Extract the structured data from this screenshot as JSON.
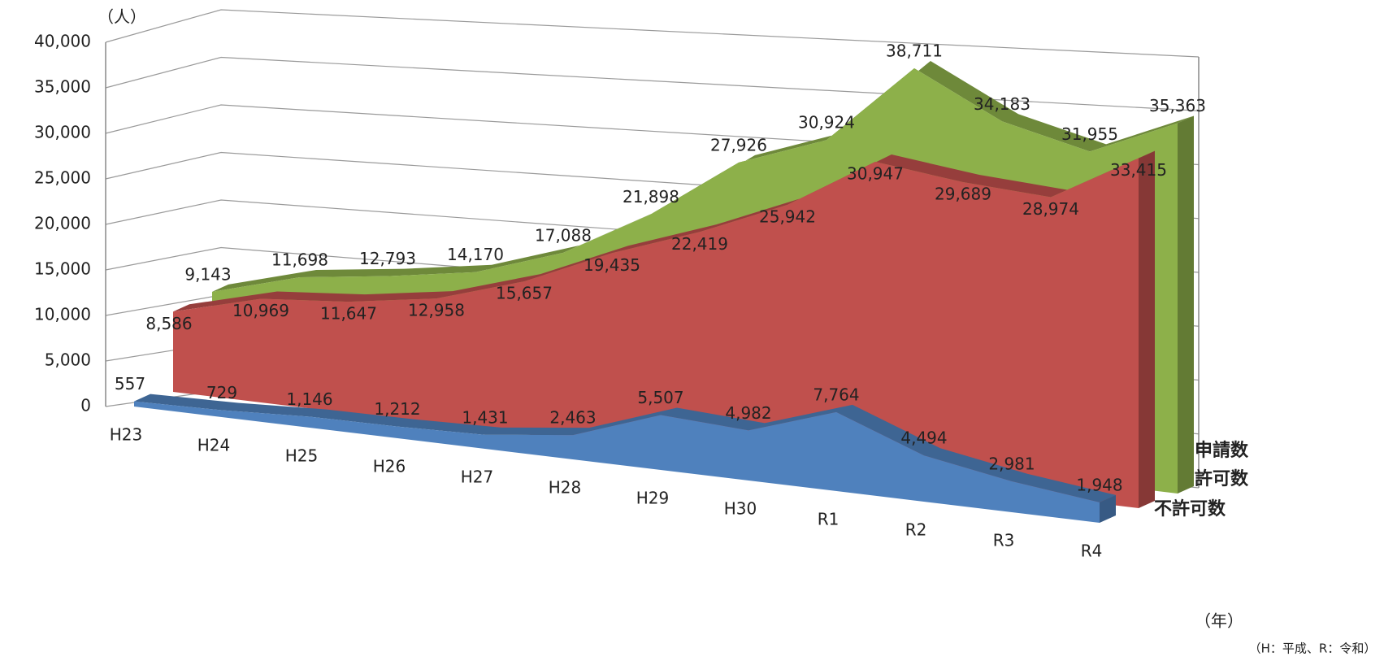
{
  "chart_data": {
    "type": "area3d",
    "y_unit_label": "（人）",
    "x_unit_label": "（年）",
    "note": "（H：平成、R：令和）",
    "categories": [
      "H23",
      "H24",
      "H25",
      "H26",
      "H27",
      "H28",
      "H29",
      "H30",
      "R1",
      "R2",
      "R3",
      "R4"
    ],
    "ylim": [
      0,
      40000
    ],
    "yticks": [
      0,
      {
        "value": 5000,
        "label": "5,000"
      },
      {
        "value": 10000,
        "label": "10,000"
      },
      {
        "value": 15000,
        "label": "15,000"
      },
      {
        "value": 20000,
        "label": "20,000"
      },
      {
        "value": 25000,
        "label": "25,000"
      },
      {
        "value": 30000,
        "label": "30,000"
      },
      {
        "value": 35000,
        "label": "35,000"
      },
      {
        "value": 40000,
        "label": "40,000"
      }
    ],
    "grid": true,
    "series": [
      {
        "name": "不許可数",
        "color": "#4f81bd",
        "values": [
          557,
          729,
          1146,
          1212,
          1431,
          2463,
          5507,
          4982,
          7764,
          4494,
          2981,
          1948
        ],
        "value_labels": [
          "557",
          "729",
          "1,146",
          "1,212",
          "1,431",
          "2,463",
          "5,507",
          "4,982",
          "7,764",
          "4,494",
          "2,981",
          "1,948"
        ]
      },
      {
        "name": "許可数",
        "color": "#c0504d",
        "values": [
          8586,
          10969,
          11647,
          12958,
          15657,
          19435,
          22419,
          25942,
          30947,
          29689,
          28974,
          33415
        ],
        "value_labels": [
          "8,586",
          "10,969",
          "11,647",
          "12,958",
          "15,657",
          "19,435",
          "22,419",
          "25,942",
          "30,947",
          "29,689",
          "28,974",
          "33,415"
        ]
      },
      {
        "name": "申請数",
        "color": "#8db04a",
        "values": [
          9143,
          11698,
          12793,
          14170,
          17088,
          21898,
          27926,
          30924,
          38711,
          34183,
          31955,
          35363
        ],
        "value_labels": [
          "9,143",
          "11,698",
          "12,793",
          "14,170",
          "17,088",
          "21,898",
          "27,926",
          "30,924",
          "38,711",
          "34,183",
          "31,955",
          "35,363"
        ]
      }
    ]
  }
}
